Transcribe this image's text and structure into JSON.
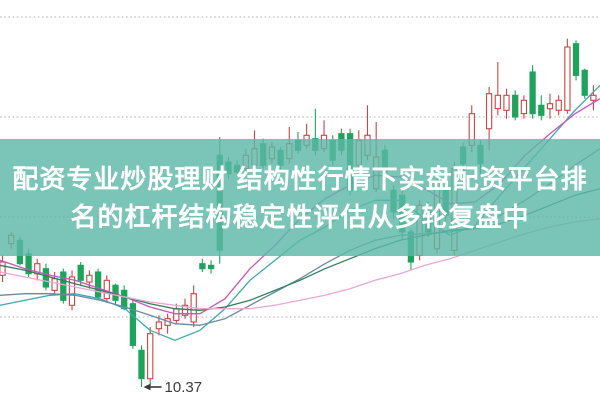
{
  "banner": {
    "line1": "配资专业炒股理财 结构性行情下实盘配资平台排",
    "line2": "名的杠杆结构稳定性评估从多轮复盘中",
    "bg_color": "rgba(93,184,167,0.82)",
    "text_color": "#ffffff"
  },
  "colors": {
    "background": "#ffffff",
    "grid": "#b0b0b0",
    "up_candle": "#cc4343",
    "up_fill": "#ffffff",
    "down_candle": "#1ea35d",
    "annotation": "#3a3a3a",
    "ma_cyan": "#3ba7b0",
    "ma_magenta": "#c455bb",
    "ma_steel": "#6a89a5",
    "ma_dgreen": "#2e7d5b",
    "ma_pink": "#e9a8d4"
  },
  "chart_data": {
    "type": "candlestick",
    "title": "",
    "xlabel": "",
    "ylabel": "",
    "x_axis_labels": [],
    "y_axis": {
      "visible_labels": [],
      "gridline_values": [
        12.59,
        11.99,
        11.39,
        10.79
      ],
      "estimated": true,
      "ylim": [
        10.3,
        12.7
      ]
    },
    "low_annotation": {
      "label": "10.37",
      "value": 10.37
    },
    "legend": "none",
    "grid": "dotted-horizontal",
    "candles": [
      {
        "dir": "u",
        "o": 11.04,
        "h": 11.16,
        "l": 11.0,
        "c": 11.12
      },
      {
        "dir": "u",
        "o": 11.23,
        "h": 11.3,
        "l": 11.2,
        "c": 11.28
      },
      {
        "dir": "d",
        "o": 11.25,
        "h": 11.27,
        "l": 11.1,
        "c": 11.11
      },
      {
        "dir": "d",
        "o": 11.17,
        "h": 11.2,
        "l": 11.03,
        "c": 11.05
      },
      {
        "dir": "u",
        "o": 11.05,
        "h": 11.14,
        "l": 11.01,
        "c": 11.11
      },
      {
        "dir": "d",
        "o": 11.08,
        "h": 11.11,
        "l": 10.95,
        "c": 10.97
      },
      {
        "dir": "u",
        "o": 10.95,
        "h": 11.06,
        "l": 10.92,
        "c": 11.02
      },
      {
        "dir": "d",
        "o": 11.06,
        "h": 11.08,
        "l": 10.87,
        "c": 10.89
      },
      {
        "dir": "u",
        "o": 10.86,
        "h": 11.07,
        "l": 10.83,
        "c": 11.03
      },
      {
        "dir": "d",
        "o": 11.1,
        "h": 11.12,
        "l": 10.98,
        "c": 11.01
      },
      {
        "dir": "u",
        "o": 11.0,
        "h": 11.07,
        "l": 10.96,
        "c": 11.04
      },
      {
        "dir": "d",
        "o": 11.06,
        "h": 11.08,
        "l": 10.89,
        "c": 10.91
      },
      {
        "dir": "u",
        "o": 10.9,
        "h": 11.04,
        "l": 10.88,
        "c": 11.01
      },
      {
        "dir": "d",
        "o": 10.98,
        "h": 10.99,
        "l": 10.86,
        "c": 10.89
      },
      {
        "dir": "d",
        "o": 10.95,
        "h": 10.98,
        "l": 10.83,
        "c": 10.84
      },
      {
        "dir": "d",
        "o": 10.87,
        "h": 10.89,
        "l": 10.6,
        "c": 10.62
      },
      {
        "dir": "d",
        "o": 10.59,
        "h": 10.62,
        "l": 10.37,
        "c": 10.42
      },
      {
        "dir": "u",
        "o": 10.42,
        "h": 10.73,
        "l": 10.38,
        "c": 10.69
      },
      {
        "dir": "u",
        "o": 10.72,
        "h": 10.8,
        "l": 10.68,
        "c": 10.76
      },
      {
        "dir": "u",
        "o": 10.74,
        "h": 10.81,
        "l": 10.69,
        "c": 10.78
      },
      {
        "dir": "u",
        "o": 10.77,
        "h": 10.87,
        "l": 10.75,
        "c": 10.84
      },
      {
        "dir": "u",
        "o": 10.8,
        "h": 10.9,
        "l": 10.78,
        "c": 10.86
      },
      {
        "dir": "u",
        "o": 10.76,
        "h": 10.98,
        "l": 10.73,
        "c": 10.93
      },
      {
        "dir": "d",
        "o": 11.11,
        "h": 11.14,
        "l": 11.06,
        "c": 11.08
      },
      {
        "dir": "d",
        "o": 11.1,
        "h": 11.13,
        "l": 11.05,
        "c": 11.08
      },
      {
        "dir": "d",
        "o": 11.76,
        "h": 11.87,
        "l": 11.11,
        "c": 11.19
      },
      {
        "dir": "d",
        "o": 11.72,
        "h": 11.75,
        "l": 11.62,
        "c": 11.65
      },
      {
        "dir": "d",
        "o": 11.7,
        "h": 11.73,
        "l": 11.63,
        "c": 11.66
      },
      {
        "dir": "u",
        "o": 11.68,
        "h": 11.8,
        "l": 11.65,
        "c": 11.76
      },
      {
        "dir": "u",
        "o": 11.7,
        "h": 11.91,
        "l": 11.66,
        "c": 11.8
      },
      {
        "dir": "d",
        "o": 11.83,
        "h": 11.86,
        "l": 11.68,
        "c": 11.7
      },
      {
        "dir": "u",
        "o": 11.74,
        "h": 11.84,
        "l": 11.71,
        "c": 11.81
      },
      {
        "dir": "d",
        "o": 11.79,
        "h": 11.81,
        "l": 11.67,
        "c": 11.7
      },
      {
        "dir": "u",
        "o": 11.74,
        "h": 11.93,
        "l": 11.71,
        "c": 11.83
      },
      {
        "dir": "d",
        "o": 11.85,
        "h": 11.9,
        "l": 11.77,
        "c": 11.79
      },
      {
        "dir": "u",
        "o": 11.82,
        "h": 11.95,
        "l": 11.8,
        "c": 11.88
      },
      {
        "dir": "d",
        "o": 11.86,
        "h": 12.04,
        "l": 11.76,
        "c": 11.79
      },
      {
        "dir": "u",
        "o": 11.8,
        "h": 11.97,
        "l": 11.78,
        "c": 11.88
      },
      {
        "dir": "d",
        "o": 11.85,
        "h": 11.88,
        "l": 11.7,
        "c": 11.73
      },
      {
        "dir": "d",
        "o": 11.89,
        "h": 11.92,
        "l": 11.76,
        "c": 11.79
      },
      {
        "dir": "d",
        "o": 11.89,
        "h": 11.92,
        "l": 11.52,
        "c": 11.55
      },
      {
        "dir": "u",
        "o": 11.7,
        "h": 11.91,
        "l": 11.67,
        "c": 11.85
      },
      {
        "dir": "u",
        "o": 11.76,
        "h": 12.06,
        "l": 11.73,
        "c": 11.88
      },
      {
        "dir": "u",
        "o": 11.56,
        "h": 11.96,
        "l": 11.54,
        "c": 11.75
      },
      {
        "dir": "d",
        "o": 11.79,
        "h": 11.82,
        "l": 11.63,
        "c": 11.66
      },
      {
        "dir": "d",
        "o": 11.55,
        "h": 11.58,
        "l": 11.38,
        "c": 11.42
      },
      {
        "dir": "d",
        "o": 11.52,
        "h": 11.55,
        "l": 11.26,
        "c": 11.3
      },
      {
        "dir": "d",
        "o": 11.3,
        "h": 11.32,
        "l": 11.07,
        "c": 11.12
      },
      {
        "dir": "u",
        "o": 11.16,
        "h": 11.49,
        "l": 11.13,
        "c": 11.46
      },
      {
        "dir": "d",
        "o": 11.44,
        "h": 11.48,
        "l": 11.27,
        "c": 11.3
      },
      {
        "dir": "u",
        "o": 11.2,
        "h": 11.64,
        "l": 11.17,
        "c": 11.6
      },
      {
        "dir": "d",
        "o": 11.55,
        "h": 11.59,
        "l": 11.37,
        "c": 11.4
      },
      {
        "dir": "u",
        "o": 11.19,
        "h": 11.72,
        "l": 11.16,
        "c": 11.68
      },
      {
        "dir": "d",
        "o": 11.81,
        "h": 11.84,
        "l": 11.58,
        "c": 11.71
      },
      {
        "dir": "u",
        "o": 11.82,
        "h": 12.06,
        "l": 11.78,
        "c": 12.01
      },
      {
        "dir": "d",
        "o": 11.82,
        "h": 11.85,
        "l": 11.64,
        "c": 11.71
      },
      {
        "dir": "u",
        "o": 11.92,
        "h": 12.17,
        "l": 11.79,
        "c": 12.13
      },
      {
        "dir": "u",
        "o": 12.04,
        "h": 12.32,
        "l": 12.0,
        "c": 12.12
      },
      {
        "dir": "u",
        "o": 12.03,
        "h": 12.16,
        "l": 11.98,
        "c": 12.12
      },
      {
        "dir": "d",
        "o": 12.12,
        "h": 12.15,
        "l": 11.97,
        "c": 11.99
      },
      {
        "dir": "u",
        "o": 12.01,
        "h": 12.12,
        "l": 11.98,
        "c": 12.09
      },
      {
        "dir": "d",
        "o": 12.26,
        "h": 12.3,
        "l": 11.98,
        "c": 12.01
      },
      {
        "dir": "d",
        "o": 12.06,
        "h": 12.12,
        "l": 11.97,
        "c": 12.0
      },
      {
        "dir": "u",
        "o": 12.04,
        "h": 12.13,
        "l": 11.98,
        "c": 12.07
      },
      {
        "dir": "u",
        "o": 12.03,
        "h": 12.12,
        "l": 12.0,
        "c": 12.09
      },
      {
        "dir": "u",
        "o": 12.03,
        "h": 12.46,
        "l": 12.01,
        "c": 12.41
      },
      {
        "dir": "d",
        "o": 12.43,
        "h": 12.45,
        "l": 12.21,
        "c": 12.24
      },
      {
        "dir": "d",
        "o": 12.27,
        "h": 12.28,
        "l": 12.1,
        "c": 12.12
      },
      {
        "dir": "u",
        "o": 12.09,
        "h": 12.18,
        "l": 12.03,
        "c": 12.12
      }
    ],
    "moving_averages": [
      {
        "name": "ma-fast-cyan",
        "color_key": "ma_cyan",
        "x_step": 25,
        "values": [
          10.86,
          10.89,
          10.92,
          10.93,
          10.9,
          10.84,
          10.71,
          10.65,
          10.71,
          10.84,
          11.01,
          11.13,
          11.25,
          11.33,
          11.43,
          11.49,
          11.49,
          11.38,
          11.28,
          11.34,
          11.52,
          11.69,
          11.86,
          12.03,
          12.18
        ]
      },
      {
        "name": "ma-mid-magenta",
        "color_key": "ma_magenta",
        "x_step": 25,
        "values": [
          11.13,
          11.08,
          11.04,
          11.01,
          10.96,
          10.91,
          10.85,
          10.81,
          10.81,
          10.9,
          11.08,
          11.22,
          11.38,
          11.5,
          11.58,
          11.64,
          11.63,
          11.56,
          11.47,
          11.48,
          11.59,
          11.76,
          11.89,
          12.01,
          12.1
        ]
      },
      {
        "name": "ma-mid-steel",
        "color_key": "ma_steel",
        "x_step": 25,
        "values": [
          10.92,
          10.93,
          10.93,
          10.92,
          10.89,
          10.85,
          10.8,
          10.75,
          10.74,
          10.78,
          10.86,
          10.94,
          11.02,
          11.11,
          11.19,
          11.25,
          11.28,
          11.29,
          11.3,
          11.33,
          11.4,
          11.49,
          11.59,
          11.7,
          11.8
        ]
      },
      {
        "name": "ma-slow-dgreen",
        "color_key": "ma_dgreen",
        "x_step": 25,
        "values": [
          11.1,
          11.07,
          11.03,
          10.99,
          10.95,
          10.91,
          10.87,
          10.84,
          10.83,
          10.85,
          10.89,
          10.95,
          11.01,
          11.08,
          11.14,
          11.2,
          11.25,
          11.28,
          11.31,
          11.32,
          11.35,
          11.4,
          11.46,
          11.52,
          11.56
        ]
      },
      {
        "name": "ma-slow-pink",
        "color_key": "ma_pink",
        "x_step": 25,
        "values": [
          11.06,
          11.03,
          11.0,
          10.97,
          10.94,
          10.91,
          10.88,
          10.86,
          10.84,
          10.84,
          10.84,
          10.86,
          10.89,
          10.92,
          10.96,
          11.01,
          11.05,
          11.1,
          11.14,
          11.19,
          11.24,
          11.29,
          11.33,
          11.36,
          11.38
        ]
      }
    ]
  }
}
